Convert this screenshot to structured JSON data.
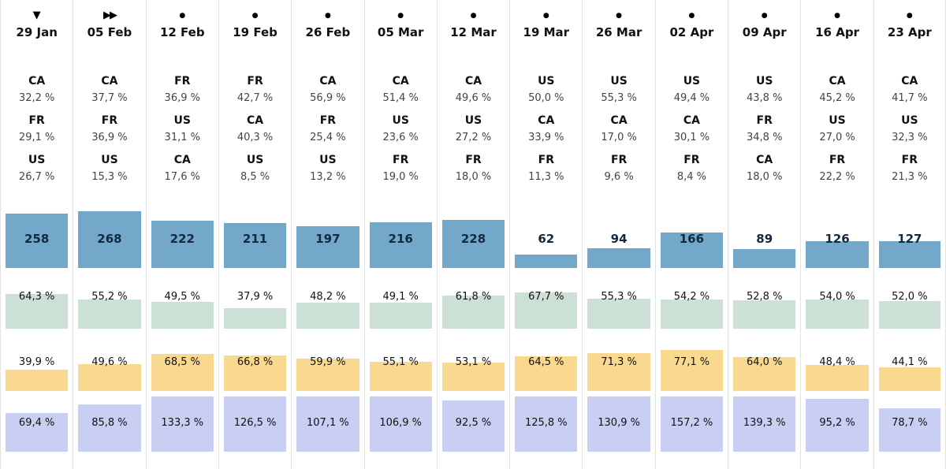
{
  "icons": {
    "triangle-down": {
      "glyph": "▼"
    },
    "fast-forward": {
      "glyph": "▶▶"
    },
    "dot": {
      "glyph": "●"
    }
  },
  "colors": {
    "count_bar": "#73a8ca",
    "green_bar": "#cde0d6",
    "yellow_bar": "#f8d98f",
    "purple_bar": "#c9cff2",
    "count_label": "#14293f",
    "bar_label": "#111111",
    "separator": "#e3e3e3"
  },
  "chart_data": {
    "type": "bar",
    "description": "13 weekly columns, each with a marker icon, date, top-3 country percentage ranking, a count bar (blue) and three percentage bars (green, yellow, purple). Bars bottom-aligned, labels fixed near bar tops. No axes, no gridlines, no legend.",
    "number_format": "comma decimal, space before % (e.g. 64,3 %)",
    "categories": [
      "29 Jan",
      "05 Feb",
      "12 Feb",
      "19 Feb",
      "26 Feb",
      "05 Mar",
      "12 Mar",
      "19 Mar",
      "26 Mar",
      "02 Apr",
      "09 Apr",
      "16 Apr",
      "23 Apr"
    ],
    "column_markers": [
      "triangle-down",
      "fast-forward",
      "dot",
      "dot",
      "dot",
      "dot",
      "dot",
      "dot",
      "dot",
      "dot",
      "dot",
      "dot",
      "dot"
    ],
    "country_rankings": [
      [
        {
          "country": "CA",
          "pct": 32.2
        },
        {
          "country": "FR",
          "pct": 29.1
        },
        {
          "country": "US",
          "pct": 26.7
        }
      ],
      [
        {
          "country": "CA",
          "pct": 37.7
        },
        {
          "country": "FR",
          "pct": 36.9
        },
        {
          "country": "US",
          "pct": 15.3
        }
      ],
      [
        {
          "country": "FR",
          "pct": 36.9
        },
        {
          "country": "US",
          "pct": 31.1
        },
        {
          "country": "CA",
          "pct": 17.6
        }
      ],
      [
        {
          "country": "FR",
          "pct": 42.7
        },
        {
          "country": "CA",
          "pct": 40.3
        },
        {
          "country": "US",
          "pct": 8.5
        }
      ],
      [
        {
          "country": "CA",
          "pct": 56.9
        },
        {
          "country": "FR",
          "pct": 25.4
        },
        {
          "country": "US",
          "pct": 13.2
        }
      ],
      [
        {
          "country": "CA",
          "pct": 51.4
        },
        {
          "country": "US",
          "pct": 23.6
        },
        {
          "country": "FR",
          "pct": 19.0
        }
      ],
      [
        {
          "country": "CA",
          "pct": 49.6
        },
        {
          "country": "US",
          "pct": 27.2
        },
        {
          "country": "FR",
          "pct": 18.0
        }
      ],
      [
        {
          "country": "US",
          "pct": 50.0
        },
        {
          "country": "CA",
          "pct": 33.9
        },
        {
          "country": "FR",
          "pct": 11.3
        }
      ],
      [
        {
          "country": "US",
          "pct": 55.3
        },
        {
          "country": "CA",
          "pct": 17.0
        },
        {
          "country": "FR",
          "pct": 9.6
        }
      ],
      [
        {
          "country": "US",
          "pct": 49.4
        },
        {
          "country": "CA",
          "pct": 30.1
        },
        {
          "country": "FR",
          "pct": 8.4
        }
      ],
      [
        {
          "country": "US",
          "pct": 43.8
        },
        {
          "country": "FR",
          "pct": 34.8
        },
        {
          "country": "CA",
          "pct": 18.0
        }
      ],
      [
        {
          "country": "CA",
          "pct": 45.2
        },
        {
          "country": "US",
          "pct": 27.0
        },
        {
          "country": "FR",
          "pct": 22.2
        }
      ],
      [
        {
          "country": "CA",
          "pct": 41.7
        },
        {
          "country": "US",
          "pct": 32.3
        },
        {
          "country": "FR",
          "pct": 21.3
        }
      ]
    ],
    "series": [
      {
        "name": "count",
        "color": "#73a8ca",
        "unit": "",
        "values": [
          258,
          268,
          222,
          211,
          197,
          216,
          228,
          62,
          94,
          166,
          89,
          126,
          127
        ]
      },
      {
        "name": "green-percent",
        "color": "#cde0d6",
        "unit": "%",
        "values": [
          64.3,
          55.2,
          49.5,
          37.9,
          48.2,
          49.1,
          61.8,
          67.7,
          55.3,
          54.2,
          52.8,
          54.0,
          52.0
        ]
      },
      {
        "name": "yellow-percent",
        "color": "#f8d98f",
        "unit": "%",
        "values": [
          39.9,
          49.6,
          68.5,
          66.8,
          59.9,
          55.1,
          53.1,
          64.5,
          71.3,
          77.1,
          64.0,
          48.4,
          44.1
        ]
      },
      {
        "name": "purple-percent",
        "color": "#c9cff2",
        "unit": "%",
        "values": [
          69.4,
          85.8,
          133.3,
          126.5,
          107.1,
          106.9,
          92.5,
          125.8,
          130.9,
          157.2,
          139.3,
          95.2,
          78.7
        ]
      }
    ]
  }
}
